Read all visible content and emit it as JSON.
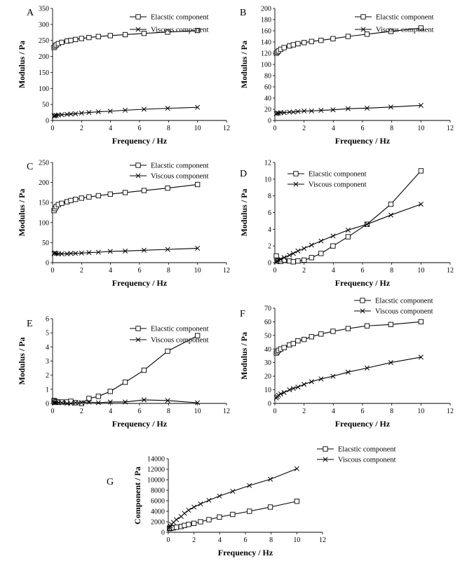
{
  "chart_data": [
    {
      "panel_label": "A",
      "type": "line",
      "xlabel": "Frequency / Hz",
      "ylabel": "Modulus / Pa",
      "xlim": [
        0,
        12
      ],
      "xticks": [
        0,
        2,
        4,
        6,
        8,
        10,
        12
      ],
      "xtick_labels": [
        "0",
        "2",
        "4",
        "6",
        "8",
        "10",
        "12"
      ],
      "ylim": [
        0,
        350
      ],
      "yticks": [
        0,
        50,
        100,
        150,
        200,
        250,
        300,
        350
      ],
      "ytick_labels": [
        "0",
        "50",
        "100",
        "150",
        "200",
        "250",
        "300",
        "350"
      ],
      "legend_position": "top-right",
      "series": [
        {
          "name": "Elacstic component",
          "marker": "square",
          "x": [
            0.1,
            0.16,
            0.25,
            0.4,
            0.63,
            1.0,
            1.26,
            1.58,
            2.0,
            2.51,
            3.16,
            3.98,
            5.01,
            6.31,
            7.94,
            10.0
          ],
          "y": [
            228,
            232,
            236,
            240,
            244,
            248,
            250,
            253,
            256,
            259,
            262,
            265,
            268,
            272,
            276,
            281
          ]
        },
        {
          "name": "Viscous component",
          "marker": "x",
          "x": [
            0.1,
            0.16,
            0.25,
            0.4,
            0.63,
            1.0,
            1.26,
            1.58,
            2.0,
            2.51,
            3.16,
            3.98,
            5.01,
            6.31,
            7.94,
            10.0
          ],
          "y": [
            14,
            15,
            16,
            17,
            18,
            19,
            20,
            21,
            23,
            25,
            27,
            29,
            32,
            35,
            38,
            41
          ]
        }
      ]
    },
    {
      "panel_label": "B",
      "type": "line",
      "xlabel": "Frequency / Hz",
      "ylabel": "Modulus / Pa",
      "xlim": [
        0,
        12
      ],
      "xticks": [
        0,
        2,
        4,
        6,
        8,
        10,
        12
      ],
      "xtick_labels": [
        "0",
        "2",
        "4",
        "6",
        "8",
        "10",
        "12"
      ],
      "ylim": [
        0,
        200
      ],
      "yticks": [
        0,
        20,
        40,
        60,
        80,
        100,
        120,
        140,
        160,
        180,
        200
      ],
      "ytick_labels": [
        "0",
        "20",
        "40",
        "60",
        "80",
        "100",
        "120",
        "140",
        "160",
        "180",
        "200"
      ],
      "legend_position": "top-right",
      "series": [
        {
          "name": "Elacstic component",
          "marker": "square",
          "x": [
            0.1,
            0.16,
            0.25,
            0.4,
            0.63,
            1.0,
            1.26,
            1.58,
            2.0,
            2.51,
            3.16,
            3.98,
            5.01,
            6.31,
            7.94,
            10.0
          ],
          "y": [
            120,
            122,
            124,
            127,
            130,
            133,
            135,
            137,
            139,
            141,
            143,
            146,
            150,
            154,
            159,
            165
          ]
        },
        {
          "name": "Viscous component",
          "marker": "x",
          "x": [
            0.1,
            0.16,
            0.25,
            0.4,
            0.63,
            1.0,
            1.26,
            1.58,
            2.0,
            2.51,
            3.16,
            3.98,
            5.01,
            6.31,
            7.94,
            10.0
          ],
          "y": [
            12,
            13,
            13,
            14,
            14,
            15,
            15,
            16,
            17,
            17,
            18,
            19,
            21,
            22,
            24,
            27
          ]
        }
      ]
    },
    {
      "panel_label": "C",
      "type": "line",
      "xlabel": "Frequency / Hz",
      "ylabel": "Modulus / Pa",
      "xlim": [
        0,
        12
      ],
      "xticks": [
        0,
        2,
        4,
        6,
        8,
        10,
        12
      ],
      "xtick_labels": [
        "0",
        "2",
        "4",
        "6",
        "8",
        "10",
        "12"
      ],
      "ylim": [
        0,
        250
      ],
      "yticks": [
        0,
        50,
        100,
        150,
        200,
        250
      ],
      "ytick_labels": [
        "0",
        "50",
        "100",
        "150",
        "200",
        "250"
      ],
      "legend_position": "top-right",
      "series": [
        {
          "name": "Elacstic component",
          "marker": "square",
          "x": [
            0.1,
            0.16,
            0.25,
            0.4,
            0.63,
            1.0,
            1.26,
            1.58,
            2.0,
            2.51,
            3.16,
            3.98,
            5.01,
            6.31,
            7.94,
            10.0
          ],
          "y": [
            130,
            135,
            140,
            145,
            148,
            152,
            155,
            158,
            161,
            164,
            167,
            171,
            175,
            180,
            186,
            195
          ]
        },
        {
          "name": "Viscous component",
          "marker": "x",
          "x": [
            0.1,
            0.16,
            0.25,
            0.4,
            0.63,
            1.0,
            1.26,
            1.58,
            2.0,
            2.51,
            3.16,
            3.98,
            5.01,
            6.31,
            7.94,
            10.0
          ],
          "y": [
            23,
            24,
            23,
            22,
            22,
            22,
            23,
            23,
            24,
            25,
            26,
            28,
            29,
            31,
            33,
            36
          ]
        }
      ]
    },
    {
      "panel_label": "D",
      "type": "line",
      "xlabel": "Frequency / Hz",
      "ylabel": "Modulus / Pa",
      "xlim": [
        0,
        12
      ],
      "xticks": [
        0,
        2,
        4,
        6,
        8,
        10,
        12
      ],
      "xtick_labels": [
        "0",
        "2",
        "4",
        "6",
        "8",
        "10",
        "12"
      ],
      "ylim": [
        0,
        12
      ],
      "yticks": [
        0,
        2,
        4,
        6,
        8,
        10,
        12
      ],
      "ytick_labels": [
        "0",
        "2",
        "4",
        "6",
        "8",
        "10",
        "12"
      ],
      "legend_position": "top-center",
      "series": [
        {
          "name": "Elacstic component",
          "marker": "square",
          "x": [
            0.1,
            0.16,
            0.25,
            0.4,
            0.63,
            1.0,
            1.26,
            1.58,
            2.0,
            2.51,
            3.16,
            3.98,
            5.01,
            6.31,
            7.94,
            10.0
          ],
          "y": [
            0.8,
            0.3,
            0.2,
            0.15,
            0.3,
            0.2,
            0.1,
            0.2,
            0.3,
            0.6,
            1.1,
            2.0,
            3.1,
            4.6,
            7.0,
            11.0
          ]
        },
        {
          "name": "Viscous component",
          "marker": "x",
          "x": [
            0.1,
            0.16,
            0.25,
            0.4,
            0.63,
            1.0,
            1.26,
            1.58,
            2.0,
            2.51,
            3.16,
            3.98,
            5.01,
            6.31,
            7.94,
            10.0
          ],
          "y": [
            0.1,
            0.2,
            0.3,
            0.4,
            0.6,
            0.9,
            1.1,
            1.4,
            1.7,
            2.1,
            2.6,
            3.2,
            3.9,
            4.6,
            5.7,
            7.0
          ]
        }
      ]
    },
    {
      "panel_label": "E",
      "type": "line",
      "xlabel": "Frequency / Hz",
      "ylabel": "Modulus / Pa",
      "xlim": [
        0,
        12
      ],
      "xticks": [
        0,
        2,
        4,
        6,
        8,
        10,
        12
      ],
      "xtick_labels": [
        "0",
        "2",
        "4",
        "6",
        "8",
        "10",
        "12"
      ],
      "ylim": [
        0,
        6
      ],
      "yticks": [
        0,
        1,
        2,
        3,
        4,
        5,
        6
      ],
      "ytick_labels": [
        "0",
        "1",
        "2",
        "3",
        "4",
        "5",
        "6"
      ],
      "legend_position": "top-right",
      "series": [
        {
          "name": "Elacstic component",
          "marker": "square",
          "x": [
            0.1,
            0.16,
            0.25,
            0.4,
            0.63,
            1.0,
            1.26,
            1.58,
            2.0,
            2.51,
            3.16,
            3.98,
            5.01,
            6.31,
            7.94,
            10.0
          ],
          "y": [
            0.2,
            0.15,
            0.1,
            0.1,
            0.1,
            0.1,
            0.15,
            0.05,
            0.0,
            0.35,
            0.5,
            0.85,
            1.5,
            2.35,
            3.7,
            4.8
          ]
        },
        {
          "name": "Viscous component",
          "marker": "x",
          "x": [
            0.1,
            0.16,
            0.25,
            0.4,
            0.63,
            1.0,
            1.26,
            1.58,
            2.0,
            2.51,
            3.16,
            3.98,
            5.01,
            6.31,
            7.94,
            10.0
          ],
          "y": [
            0.05,
            0.05,
            0.05,
            0.05,
            0.05,
            0.0,
            0.0,
            0.05,
            0.05,
            0.1,
            0.05,
            0.1,
            0.1,
            0.25,
            0.2,
            0.05
          ]
        }
      ]
    },
    {
      "panel_label": "F",
      "type": "line",
      "xlabel": "Frequency / Hz",
      "ylabel": "Modulus / Pa",
      "xlim": [
        0,
        12
      ],
      "xticks": [
        0,
        2,
        4,
        6,
        8,
        10,
        12
      ],
      "xtick_labels": [
        "0",
        "2",
        "4",
        "6",
        "8",
        "10",
        "12"
      ],
      "ylim": [
        0,
        70
      ],
      "yticks": [
        0,
        10,
        20,
        30,
        40,
        50,
        60,
        70
      ],
      "ytick_labels": [
        "0",
        "10",
        "20",
        "30",
        "40",
        "50",
        "60",
        "70"
      ],
      "legend_position": "top-right",
      "series": [
        {
          "name": "Elacstic component",
          "marker": "square",
          "x": [
            0.1,
            0.16,
            0.25,
            0.4,
            0.63,
            1.0,
            1.26,
            1.58,
            2.0,
            2.51,
            3.16,
            3.98,
            5.01,
            6.31,
            7.94,
            10.0
          ],
          "y": [
            37,
            38,
            39,
            40,
            41,
            43,
            44,
            46,
            47,
            49,
            51,
            53,
            55,
            57,
            58,
            60
          ]
        },
        {
          "name": "Viscous component",
          "marker": "x",
          "x": [
            0.1,
            0.16,
            0.25,
            0.4,
            0.63,
            1.0,
            1.26,
            1.58,
            2.0,
            2.51,
            3.16,
            3.98,
            5.01,
            6.31,
            7.94,
            10.0
          ],
          "y": [
            4,
            5,
            6,
            7,
            8,
            10,
            11,
            12,
            14,
            16,
            18,
            20,
            23,
            26,
            30,
            34
          ]
        }
      ]
    },
    {
      "panel_label": "G",
      "type": "line",
      "xlabel": "Frequency / Hz",
      "ylabel": "Component / Pa",
      "xlim": [
        0,
        12
      ],
      "xticks": [
        0,
        2,
        4,
        6,
        8,
        10,
        12
      ],
      "xtick_labels": [
        "0",
        "2",
        "4",
        "6",
        "8",
        "10",
        "12"
      ],
      "ylim": [
        0,
        14000
      ],
      "yticks": [
        0,
        2000,
        4000,
        6000,
        8000,
        10000,
        12000,
        14000
      ],
      "ytick_labels": [
        "0",
        "2000",
        "4000",
        "6000",
        "8000",
        "10000",
        "12000",
        "14000"
      ],
      "legend_position": "top-right",
      "series": [
        {
          "name": "Elacstic component",
          "marker": "square",
          "x": [
            0.1,
            0.16,
            0.25,
            0.4,
            0.63,
            1.0,
            1.26,
            1.58,
            2.0,
            2.51,
            3.16,
            3.98,
            5.01,
            6.31,
            7.94,
            10.0
          ],
          "y": [
            700,
            750,
            800,
            850,
            950,
            1100,
            1300,
            1500,
            1700,
            2000,
            2400,
            2900,
            3400,
            4000,
            4800,
            5900
          ]
        },
        {
          "name": "Viscous component",
          "marker": "x",
          "x": [
            0.1,
            0.16,
            0.25,
            0.4,
            0.63,
            1.0,
            1.26,
            1.58,
            2.0,
            2.51,
            3.16,
            3.98,
            5.01,
            6.31,
            7.94,
            10.0
          ],
          "y": [
            900,
            1200,
            1500,
            1900,
            2400,
            3000,
            3600,
            4200,
            4800,
            5400,
            6100,
            6900,
            7800,
            8900,
            10100,
            12100
          ]
        }
      ]
    }
  ]
}
